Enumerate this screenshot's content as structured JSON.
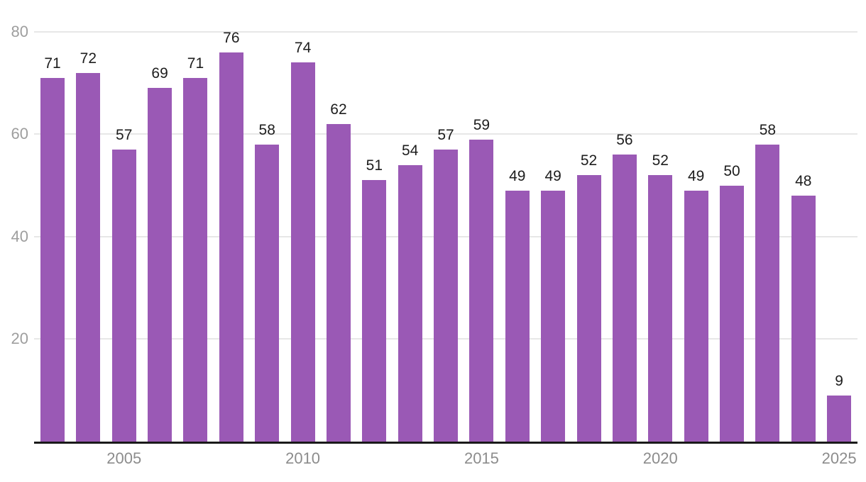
{
  "chart_data": {
    "type": "bar",
    "title": "",
    "xlabel": "",
    "ylabel": "",
    "categories": [
      "2003",
      "2004",
      "2005",
      "2006",
      "2007",
      "2008",
      "2009",
      "2010",
      "2011",
      "2012",
      "2013",
      "2014",
      "2015",
      "2016",
      "2017",
      "2018",
      "2019",
      "2020",
      "2021",
      "2022",
      "2023",
      "2024",
      "2025"
    ],
    "values": [
      71,
      72,
      57,
      69,
      71,
      76,
      58,
      74,
      62,
      51,
      54,
      57,
      59,
      49,
      49,
      52,
      56,
      52,
      49,
      50,
      58,
      48,
      9
    ],
    "data_labels_visible": true,
    "ylim": [
      0,
      80
    ],
    "yticks": [
      "20",
      "40",
      "60",
      "80"
    ],
    "xticks": [
      "2005",
      "2010",
      "2015",
      "2020",
      "2025"
    ],
    "grid": true,
    "legend": false,
    "colors": {
      "bar": "#9a59b5",
      "value_label": "#1d1d1d",
      "y_tick_label": "#9e9e9e",
      "x_tick_label": "#8c8c8c",
      "gridline": "#e7e7e7",
      "baseline": "#1a1a1a",
      "background": "#ffffff"
    }
  }
}
